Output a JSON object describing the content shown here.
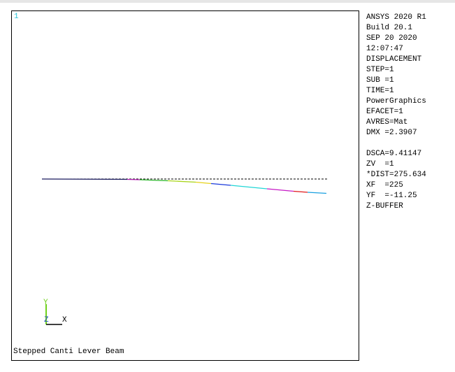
{
  "window_number": "1",
  "info": [
    "ANSYS 2020 R1",
    "Build 20.1",
    "SEP 20 2020",
    "12:07:47",
    "DISPLACEMENT",
    "STEP=1",
    "SUB =1",
    "TIME=1",
    "PowerGraphics",
    "EFACET=1",
    "AVRES=Mat",
    "DMX =2.3907"
  ],
  "view": [
    "DSCA=9.41147",
    "ZV  =1",
    "*DIST=275.634",
    "XF  =225",
    "YF  =-11.25",
    "Z-BUFFER"
  ],
  "triad": {
    "y": "Y",
    "z": "Z",
    "x": "X"
  },
  "title": "Stepped Canti Lever Beam"
}
